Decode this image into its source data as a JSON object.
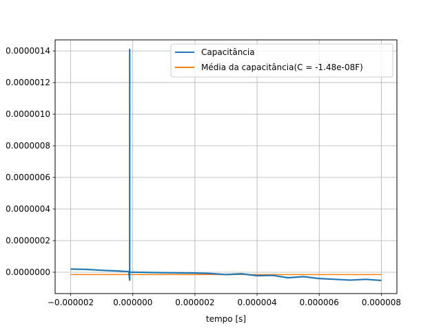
{
  "chart_data": {
    "type": "line",
    "title": "",
    "xlabel": "tempo [s]",
    "ylabel": "",
    "xlim": [
      -2.5e-06,
      8.5e-06
    ],
    "ylim": [
      -1.35e-07,
      1.47e-06
    ],
    "grid": true,
    "legend_placement": "top-right",
    "x_ticks": [
      -2e-06,
      0.0,
      2e-06,
      4e-06,
      6e-06,
      8e-06
    ],
    "x_tick_labels": [
      "−0.000002",
      "0.000000",
      "0.000002",
      "0.000004",
      "0.000006",
      "0.000008"
    ],
    "y_ticks": [
      0.0,
      2e-07,
      4e-07,
      6e-07,
      8e-07,
      1e-06,
      1.2e-06,
      1.4e-06
    ],
    "y_tick_labels": [
      "0.0000000",
      "0.0000002",
      "0.0000004",
      "0.0000006",
      "0.0000008",
      "0.0000010",
      "0.0000012",
      "0.0000014"
    ],
    "series": [
      {
        "name": "Capacitância",
        "color": "#1f77b4",
        "x": [
          -2e-06,
          -1.5e-06,
          -1e-06,
          -5e-07,
          -1.3e-07,
          -1e-07,
          -1e-07,
          -1e-07,
          -8e-08,
          0.0,
          1e-06,
          2e-06,
          2.5e-06,
          3e-06,
          3.5e-06,
          4e-06,
          4.5e-06,
          5e-06,
          5.5e-06,
          6e-06,
          6.5e-06,
          7e-06,
          7.5e-06,
          8e-06
        ],
        "y": [
          2e-08,
          1.8e-08,
          1.2e-08,
          8e-09,
          4e-09,
          -5e-08,
          1.41e-06,
          2e-09,
          0.0,
          0.0,
          -3e-09,
          -5e-09,
          -8e-09,
          -1.5e-08,
          -1e-08,
          -2.2e-08,
          -2e-08,
          -3.5e-08,
          -2.8e-08,
          -4e-08,
          -4.5e-08,
          -5e-08,
          -4.5e-08,
          -5.2e-08
        ]
      },
      {
        "name": "Média da capacitância(C = -1.48e-08F)",
        "color": "#ff7f0e",
        "x": [
          -2e-06,
          8e-06
        ],
        "y": [
          -1.48e-08,
          -1.48e-08
        ]
      }
    ]
  }
}
